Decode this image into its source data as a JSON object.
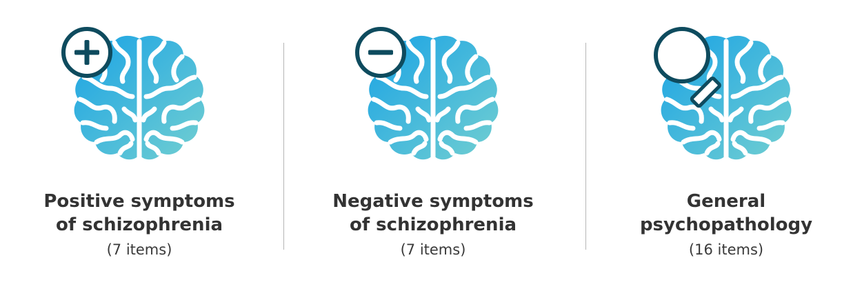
{
  "colors": {
    "brain_light": "#1aa7e4",
    "brain_dark": "#6ecbd3",
    "badge_stroke": "#0e4b5e",
    "text": "#333333"
  },
  "panels": [
    {
      "icon": "brain-plus-icon",
      "title_line1": "Positive symptoms",
      "title_line2": "of schizophrenia",
      "count": "(7 items)"
    },
    {
      "icon": "brain-minus-icon",
      "title_line1": "Negative symptoms",
      "title_line2": "of schizophrenia",
      "count": "(7 items)"
    },
    {
      "icon": "brain-magnifier-icon",
      "title_line1": "General",
      "title_line2": "psychopathology",
      "count": "(16 items)"
    }
  ]
}
